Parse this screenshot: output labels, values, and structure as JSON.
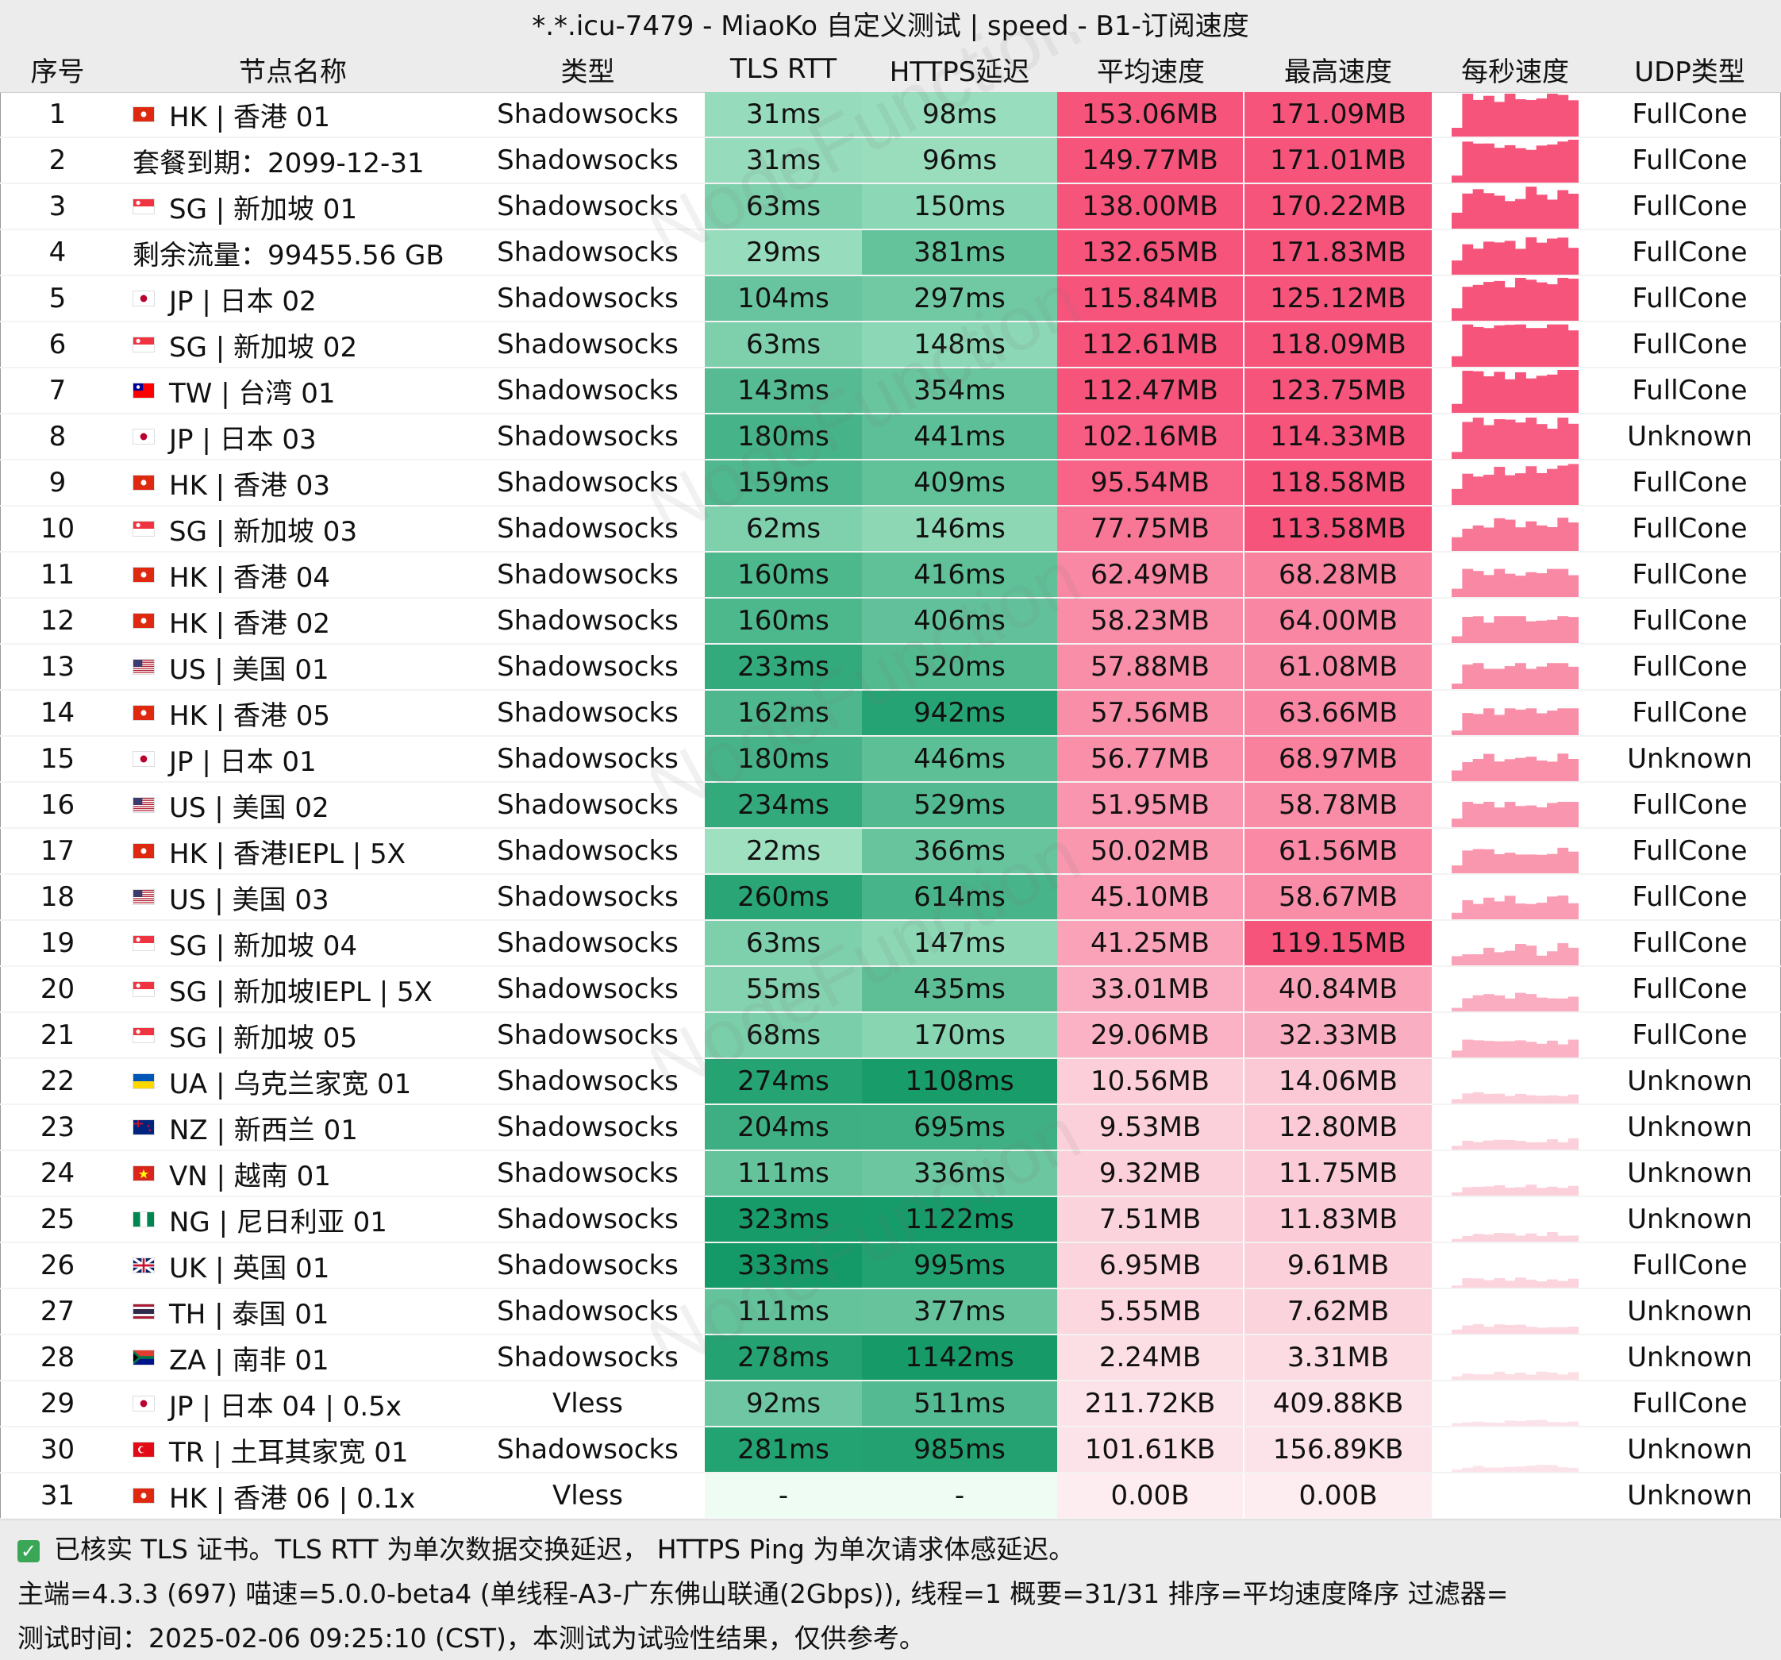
{
  "title": "*.*.icu-7479 - MiaoKo 自定义测试 | speed - B1-订阅速度",
  "columns": [
    "序号",
    "节点名称",
    "类型",
    "TLS RTT",
    "HTTPS延迟",
    "平均速度",
    "最高速度",
    "每秒速度",
    "UDP类型"
  ],
  "watermark": "NodeFunction",
  "rows": [
    {
      "no": "1",
      "flag": "HK",
      "name": "HK | 香港 01",
      "type": "Shadowsocks",
      "tls": "31ms",
      "https": "98ms",
      "avg": "153.06MB",
      "max": "171.09MB",
      "udp": "FullCone",
      "avg_val": 153.06,
      "max_val": 171.09,
      "tls_val": 31,
      "https_val": 98
    },
    {
      "no": "2",
      "flag": "",
      "name": "套餐到期：2099-12-31",
      "type": "Shadowsocks",
      "tls": "31ms",
      "https": "96ms",
      "avg": "149.77MB",
      "max": "171.01MB",
      "udp": "FullCone",
      "avg_val": 149.77,
      "max_val": 171.01,
      "tls_val": 31,
      "https_val": 96
    },
    {
      "no": "3",
      "flag": "SG",
      "name": "SG | 新加坡 01",
      "type": "Shadowsocks",
      "tls": "63ms",
      "https": "150ms",
      "avg": "138.00MB",
      "max": "170.22MB",
      "udp": "FullCone",
      "avg_val": 138.0,
      "max_val": 170.22,
      "tls_val": 63,
      "https_val": 150
    },
    {
      "no": "4",
      "flag": "",
      "name": "剩余流量：99455.56 GB",
      "type": "Shadowsocks",
      "tls": "29ms",
      "https": "381ms",
      "avg": "132.65MB",
      "max": "171.83MB",
      "udp": "FullCone",
      "avg_val": 132.65,
      "max_val": 171.83,
      "tls_val": 29,
      "https_val": 381
    },
    {
      "no": "5",
      "flag": "JP",
      "name": "JP | 日本 02",
      "type": "Shadowsocks",
      "tls": "104ms",
      "https": "297ms",
      "avg": "115.84MB",
      "max": "125.12MB",
      "udp": "FullCone",
      "avg_val": 115.84,
      "max_val": 125.12,
      "tls_val": 104,
      "https_val": 297
    },
    {
      "no": "6",
      "flag": "SG",
      "name": "SG | 新加坡 02",
      "type": "Shadowsocks",
      "tls": "63ms",
      "https": "148ms",
      "avg": "112.61MB",
      "max": "118.09MB",
      "udp": "FullCone",
      "avg_val": 112.61,
      "max_val": 118.09,
      "tls_val": 63,
      "https_val": 148
    },
    {
      "no": "7",
      "flag": "TW",
      "name": "TW | 台湾 01",
      "type": "Shadowsocks",
      "tls": "143ms",
      "https": "354ms",
      "avg": "112.47MB",
      "max": "123.75MB",
      "udp": "FullCone",
      "avg_val": 112.47,
      "max_val": 123.75,
      "tls_val": 143,
      "https_val": 354
    },
    {
      "no": "8",
      "flag": "JP",
      "name": "JP | 日本 03",
      "type": "Shadowsocks",
      "tls": "180ms",
      "https": "441ms",
      "avg": "102.16MB",
      "max": "114.33MB",
      "udp": "Unknown",
      "avg_val": 102.16,
      "max_val": 114.33,
      "tls_val": 180,
      "https_val": 441
    },
    {
      "no": "9",
      "flag": "HK",
      "name": "HK | 香港 03",
      "type": "Shadowsocks",
      "tls": "159ms",
      "https": "409ms",
      "avg": "95.54MB",
      "max": "118.58MB",
      "udp": "FullCone",
      "avg_val": 95.54,
      "max_val": 118.58,
      "tls_val": 159,
      "https_val": 409
    },
    {
      "no": "10",
      "flag": "SG",
      "name": "SG | 新加坡 03",
      "type": "Shadowsocks",
      "tls": "62ms",
      "https": "146ms",
      "avg": "77.75MB",
      "max": "113.58MB",
      "udp": "FullCone",
      "avg_val": 77.75,
      "max_val": 113.58,
      "tls_val": 62,
      "https_val": 146
    },
    {
      "no": "11",
      "flag": "HK",
      "name": "HK | 香港 04",
      "type": "Shadowsocks",
      "tls": "160ms",
      "https": "416ms",
      "avg": "62.49MB",
      "max": "68.28MB",
      "udp": "FullCone",
      "avg_val": 62.49,
      "max_val": 68.28,
      "tls_val": 160,
      "https_val": 416
    },
    {
      "no": "12",
      "flag": "HK",
      "name": "HK | 香港 02",
      "type": "Shadowsocks",
      "tls": "160ms",
      "https": "406ms",
      "avg": "58.23MB",
      "max": "64.00MB",
      "udp": "FullCone",
      "avg_val": 58.23,
      "max_val": 64.0,
      "tls_val": 160,
      "https_val": 406
    },
    {
      "no": "13",
      "flag": "US",
      "name": "US | 美国 01",
      "type": "Shadowsocks",
      "tls": "233ms",
      "https": "520ms",
      "avg": "57.88MB",
      "max": "61.08MB",
      "udp": "FullCone",
      "avg_val": 57.88,
      "max_val": 61.08,
      "tls_val": 233,
      "https_val": 520
    },
    {
      "no": "14",
      "flag": "HK",
      "name": "HK | 香港 05",
      "type": "Shadowsocks",
      "tls": "162ms",
      "https": "942ms",
      "avg": "57.56MB",
      "max": "63.66MB",
      "udp": "FullCone",
      "avg_val": 57.56,
      "max_val": 63.66,
      "tls_val": 162,
      "https_val": 942
    },
    {
      "no": "15",
      "flag": "JP",
      "name": "JP | 日本 01",
      "type": "Shadowsocks",
      "tls": "180ms",
      "https": "446ms",
      "avg": "56.77MB",
      "max": "68.97MB",
      "udp": "Unknown",
      "avg_val": 56.77,
      "max_val": 68.97,
      "tls_val": 180,
      "https_val": 446
    },
    {
      "no": "16",
      "flag": "US",
      "name": "US | 美国 02",
      "type": "Shadowsocks",
      "tls": "234ms",
      "https": "529ms",
      "avg": "51.95MB",
      "max": "58.78MB",
      "udp": "FullCone",
      "avg_val": 51.95,
      "max_val": 58.78,
      "tls_val": 234,
      "https_val": 529
    },
    {
      "no": "17",
      "flag": "HK",
      "name": "HK | 香港IEPL | 5X",
      "type": "Shadowsocks",
      "tls": "22ms",
      "https": "366ms",
      "avg": "50.02MB",
      "max": "61.56MB",
      "udp": "FullCone",
      "avg_val": 50.02,
      "max_val": 61.56,
      "tls_val": 22,
      "https_val": 366
    },
    {
      "no": "18",
      "flag": "US",
      "name": "US | 美国 03",
      "type": "Shadowsocks",
      "tls": "260ms",
      "https": "614ms",
      "avg": "45.10MB",
      "max": "58.67MB",
      "udp": "FullCone",
      "avg_val": 45.1,
      "max_val": 58.67,
      "tls_val": 260,
      "https_val": 614
    },
    {
      "no": "19",
      "flag": "SG",
      "name": "SG | 新加坡 04",
      "type": "Shadowsocks",
      "tls": "63ms",
      "https": "147ms",
      "avg": "41.25MB",
      "max": "119.15MB",
      "udp": "FullCone",
      "avg_val": 41.25,
      "max_val": 119.15,
      "tls_val": 63,
      "https_val": 147
    },
    {
      "no": "20",
      "flag": "SG",
      "name": "SG | 新加坡IEPL | 5X",
      "type": "Shadowsocks",
      "tls": "55ms",
      "https": "435ms",
      "avg": "33.01MB",
      "max": "40.84MB",
      "udp": "FullCone",
      "avg_val": 33.01,
      "max_val": 40.84,
      "tls_val": 55,
      "https_val": 435
    },
    {
      "no": "21",
      "flag": "SG",
      "name": "SG | 新加坡 05",
      "type": "Shadowsocks",
      "tls": "68ms",
      "https": "170ms",
      "avg": "29.06MB",
      "max": "32.33MB",
      "udp": "FullCone",
      "avg_val": 29.06,
      "max_val": 32.33,
      "tls_val": 68,
      "https_val": 170
    },
    {
      "no": "22",
      "flag": "UA",
      "name": "UA | 乌克兰家宽 01",
      "type": "Shadowsocks",
      "tls": "274ms",
      "https": "1108ms",
      "avg": "10.56MB",
      "max": "14.06MB",
      "udp": "Unknown",
      "avg_val": 10.56,
      "max_val": 14.06,
      "tls_val": 274,
      "https_val": 1108
    },
    {
      "no": "23",
      "flag": "NZ",
      "name": "NZ | 新西兰 01",
      "type": "Shadowsocks",
      "tls": "204ms",
      "https": "695ms",
      "avg": "9.53MB",
      "max": "12.80MB",
      "udp": "Unknown",
      "avg_val": 9.53,
      "max_val": 12.8,
      "tls_val": 204,
      "https_val": 695
    },
    {
      "no": "24",
      "flag": "VN",
      "name": "VN | 越南 01",
      "type": "Shadowsocks",
      "tls": "111ms",
      "https": "336ms",
      "avg": "9.32MB",
      "max": "11.75MB",
      "udp": "Unknown",
      "avg_val": 9.32,
      "max_val": 11.75,
      "tls_val": 111,
      "https_val": 336
    },
    {
      "no": "25",
      "flag": "NG",
      "name": "NG | 尼日利亚 01",
      "type": "Shadowsocks",
      "tls": "323ms",
      "https": "1122ms",
      "avg": "7.51MB",
      "max": "11.83MB",
      "udp": "Unknown",
      "avg_val": 7.51,
      "max_val": 11.83,
      "tls_val": 323,
      "https_val": 1122
    },
    {
      "no": "26",
      "flag": "UK",
      "name": "UK | 英国 01",
      "type": "Shadowsocks",
      "tls": "333ms",
      "https": "995ms",
      "avg": "6.95MB",
      "max": "9.61MB",
      "udp": "FullCone",
      "avg_val": 6.95,
      "max_val": 9.61,
      "tls_val": 333,
      "https_val": 995
    },
    {
      "no": "27",
      "flag": "TH",
      "name": "TH | 泰国 01",
      "type": "Shadowsocks",
      "tls": "111ms",
      "https": "377ms",
      "avg": "5.55MB",
      "max": "7.62MB",
      "udp": "Unknown",
      "avg_val": 5.55,
      "max_val": 7.62,
      "tls_val": 111,
      "https_val": 377
    },
    {
      "no": "28",
      "flag": "ZA",
      "name": "ZA | 南非 01",
      "type": "Shadowsocks",
      "tls": "278ms",
      "https": "1142ms",
      "avg": "2.24MB",
      "max": "3.31MB",
      "udp": "Unknown",
      "avg_val": 2.24,
      "max_val": 3.31,
      "tls_val": 278,
      "https_val": 1142
    },
    {
      "no": "29",
      "flag": "JP",
      "name": "JP | 日本 04 | 0.5x",
      "type": "Vless",
      "tls": "92ms",
      "https": "511ms",
      "avg": "211.72KB",
      "max": "409.88KB",
      "udp": "FullCone",
      "avg_val": 0.207,
      "max_val": 0.4,
      "tls_val": 92,
      "https_val": 511
    },
    {
      "no": "30",
      "flag": "TR",
      "name": "TR | 土耳其家宽 01",
      "type": "Shadowsocks",
      "tls": "281ms",
      "https": "985ms",
      "avg": "101.61KB",
      "max": "156.89KB",
      "udp": "Unknown",
      "avg_val": 0.099,
      "max_val": 0.153,
      "tls_val": 281,
      "https_val": 985
    },
    {
      "no": "31",
      "flag": "HK",
      "name": "HK | 香港 06 | 0.1x",
      "type": "Vless",
      "tls": "-",
      "https": "-",
      "avg": "0.00B",
      "max": "0.00B",
      "udp": "Unknown",
      "avg_val": 0,
      "max_val": 0,
      "tls_val": null,
      "https_val": null
    }
  ],
  "footer": {
    "line1": "已核实 TLS 证书。TLS RTT 为单次数据交换延迟， HTTPS Ping 为单次请求体感延迟。",
    "line2": "主端=4.3.3 (697) 喵速=5.0.0-beta4 (单线程-A3-广东佛山联通(2Gbps)), 线程=1 概要=31/31 排序=平均速度降序 过滤器=",
    "line3": "测试时间：2025-02-06 09:25:10 (CST)，本测试为试验性结果，仅供参考。"
  },
  "colors": {
    "header_bg": "#ececec",
    "speed_high": "#f7547c",
    "speed_low": "#fce4ea",
    "latency_light": "#c6f4da",
    "latency_dark": "#149a68",
    "check": "#3aa757"
  },
  "icons": {
    "check": "checkbox-check-icon",
    "flag": "country-flag-icon"
  }
}
